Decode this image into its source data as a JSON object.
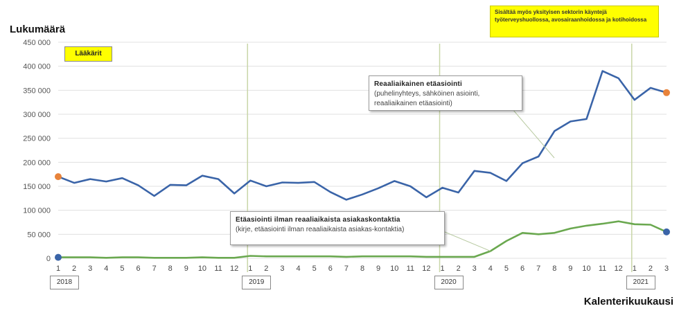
{
  "header": {
    "ylabel": "Lukumäärä",
    "xlabel": "Kalenterikuukausi"
  },
  "note": "Sisältää myös yksityisen sektorin käyntejä työterveyshuollossa, avosairaanhoidossa ja kotihoidossa",
  "tag": "Lääkärit",
  "annotations": {
    "realtime_title": "Reaaliaikainen etäasiointi",
    "realtime_desc": "(puhelinyhteys, sähköinen asiointi, reaaliaikainen etäasiointi)",
    "nonrealtime_title": "Etäasiointi ilman reaaliaikaista asiakaskontaktia",
    "nonrealtime_desc": "(kirje, etäasiointi ilman reaaliaikaista asiakas-kontaktia)"
  },
  "years": [
    "2018",
    "2019",
    "2020",
    "2021"
  ],
  "colors": {
    "realtime": "#3a64a8",
    "nonrealtime": "#6aa84f",
    "end_marker": "#e8833a",
    "vline": "#c9d6a8",
    "grid": "#e0e0e0",
    "note_bg": "#ffff00"
  },
  "chart_data": {
    "type": "line",
    "ylim": [
      0,
      450000
    ],
    "yticks": [
      "0",
      "50 000",
      "100 000",
      "150 000",
      "200 000",
      "250 000",
      "300 000",
      "350 000",
      "400 000",
      "450 000"
    ],
    "categories": [
      "1",
      "2",
      "3",
      "4",
      "5",
      "6",
      "7",
      "8",
      "9",
      "10",
      "11",
      "12",
      "1",
      "2",
      "3",
      "4",
      "5",
      "6",
      "7",
      "8",
      "9",
      "10",
      "11",
      "12",
      "1",
      "2",
      "3",
      "4",
      "5",
      "6",
      "7",
      "8",
      "9",
      "10",
      "11",
      "12",
      "1",
      "2",
      "3"
    ],
    "year_starts": [
      0,
      12,
      24,
      36
    ],
    "series": [
      {
        "name": "Reaaliaikainen etäasiointi",
        "values": [
          170000,
          157000,
          165000,
          160000,
          167000,
          152000,
          130000,
          153000,
          152000,
          172000,
          165000,
          135000,
          162000,
          150000,
          158000,
          157000,
          159000,
          138000,
          122000,
          133000,
          146000,
          161000,
          150000,
          127000,
          147000,
          137000,
          182000,
          178000,
          161000,
          198000,
          212000,
          265000,
          285000,
          290000,
          390000,
          375000,
          330000,
          355000,
          345000
        ]
      },
      {
        "name": "Etäasiointi ilman reaaliaikaista asiakaskontaktia",
        "values": [
          2000,
          2000,
          2000,
          1000,
          2000,
          2000,
          1000,
          1000,
          1000,
          2000,
          1000,
          1000,
          5000,
          4000,
          4000,
          4000,
          4000,
          4000,
          3000,
          4000,
          4000,
          4000,
          4000,
          3000,
          3000,
          3000,
          3000,
          15000,
          36000,
          53000,
          50000,
          53000,
          62000,
          68000,
          72000,
          77000,
          71000,
          70000,
          55000
        ]
      }
    ]
  }
}
